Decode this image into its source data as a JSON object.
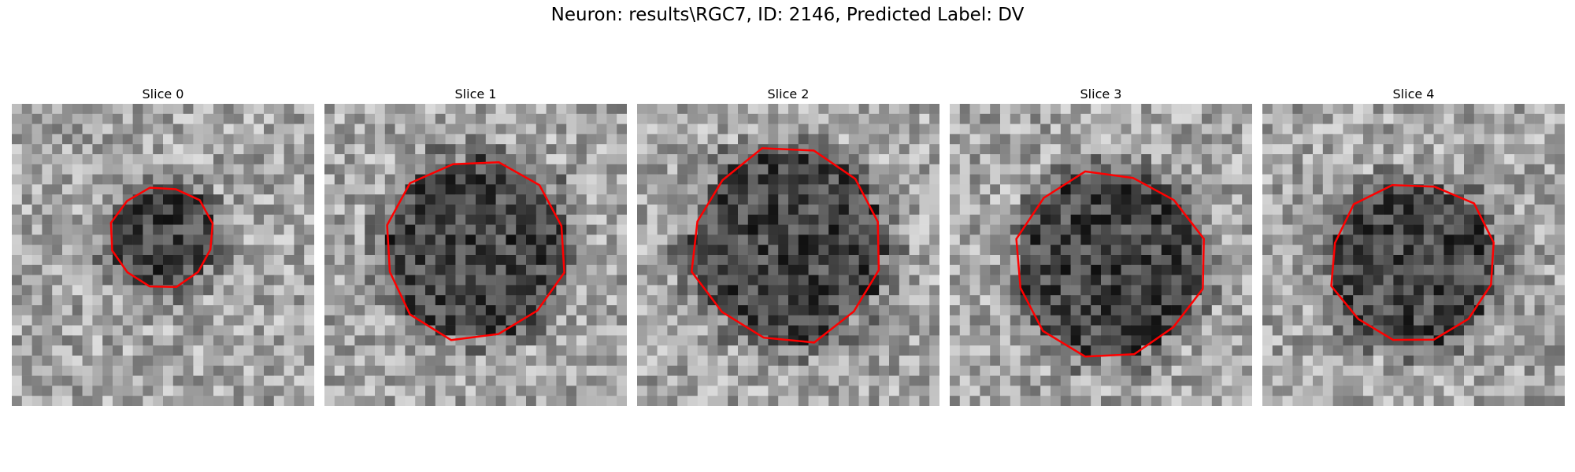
{
  "figure": {
    "title": "Neuron: results\\RGC7, ID: 2146, Predicted Label: DV"
  },
  "panels": [
    {
      "title": "Slice 0",
      "contour_radius": 0.17,
      "center": [
        0.5,
        0.44
      ],
      "outline_color": "#ff0000"
    },
    {
      "title": "Slice 1",
      "contour_radius": 0.3,
      "center": [
        0.5,
        0.48
      ],
      "outline_color": "#ff0000"
    },
    {
      "title": "Slice 2",
      "contour_radius": 0.32,
      "center": [
        0.5,
        0.47
      ],
      "outline_color": "#ff0000"
    },
    {
      "title": "Slice 3",
      "contour_radius": 0.31,
      "center": [
        0.53,
        0.53
      ],
      "outline_color": "#ff0000"
    },
    {
      "title": "Slice 4",
      "contour_radius": 0.27,
      "center": [
        0.5,
        0.53
      ],
      "outline_color": "#ff0000"
    }
  ],
  "image": {
    "grid_size": 30,
    "colormap": "gray"
  }
}
